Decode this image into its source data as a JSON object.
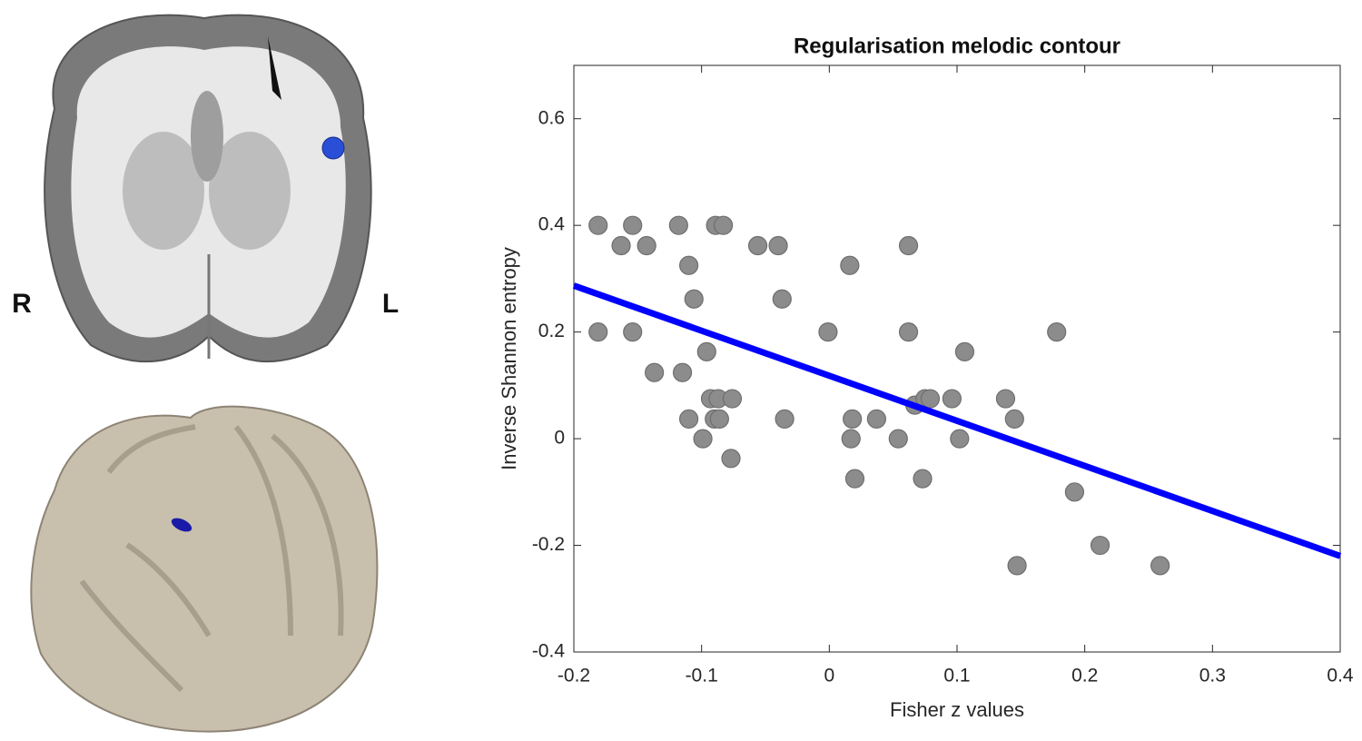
{
  "chart_data": {
    "type": "scatter",
    "title": "Regularisation melodic contour",
    "xlabel": "Fisher z values",
    "ylabel": "Inverse Shannon entropy",
    "annotations": [
      "R",
      "L"
    ],
    "xlim": [
      -0.2,
      0.4
    ],
    "ylim": [
      -0.4,
      0.7
    ],
    "xticks": [
      -0.2,
      -0.1,
      0,
      0.1,
      0.2,
      0.3,
      0.4
    ],
    "yticks": [
      -0.4,
      -0.2,
      0,
      0.2,
      0.4,
      0.6
    ],
    "color": "#8c8c8c",
    "x": [
      -0.181,
      -0.154,
      -0.118,
      -0.089,
      -0.083,
      -0.163,
      -0.143,
      -0.056,
      -0.04,
      0.062,
      -0.11,
      0.016,
      -0.106,
      -0.037,
      -0.181,
      -0.154,
      -0.001,
      0.062,
      0.178,
      -0.096,
      0.106,
      -0.137,
      -0.115,
      -0.093,
      -0.087,
      -0.076,
      0.067,
      0.075,
      0.079,
      0.096,
      0.138,
      -0.11,
      -0.09,
      -0.086,
      -0.035,
      0.018,
      0.037,
      0.145,
      -0.099,
      0.017,
      0.054,
      0.102,
      -0.077,
      0.02,
      0.073,
      0.192,
      0.212,
      0.147,
      0.259
    ],
    "values": [
      0.4,
      0.4,
      0.4,
      0.4,
      0.4,
      0.362,
      0.362,
      0.362,
      0.362,
      0.362,
      0.325,
      0.325,
      0.262,
      0.262,
      0.2,
      0.2,
      0.2,
      0.2,
      0.2,
      0.163,
      0.163,
      0.124,
      0.124,
      0.075,
      0.075,
      0.075,
      0.063,
      0.075,
      0.075,
      0.075,
      0.075,
      0.037,
      0.037,
      0.037,
      0.037,
      0.037,
      0.037,
      0.037,
      0,
      0,
      0,
      0,
      -0.037,
      -0.075,
      -0.075,
      -0.1,
      -0.2,
      -0.238,
      -0.238
    ],
    "fit": {
      "x": [
        -0.2,
        0.4
      ],
      "values": [
        0.287,
        -0.22
      ],
      "color": "#0000ff"
    }
  }
}
